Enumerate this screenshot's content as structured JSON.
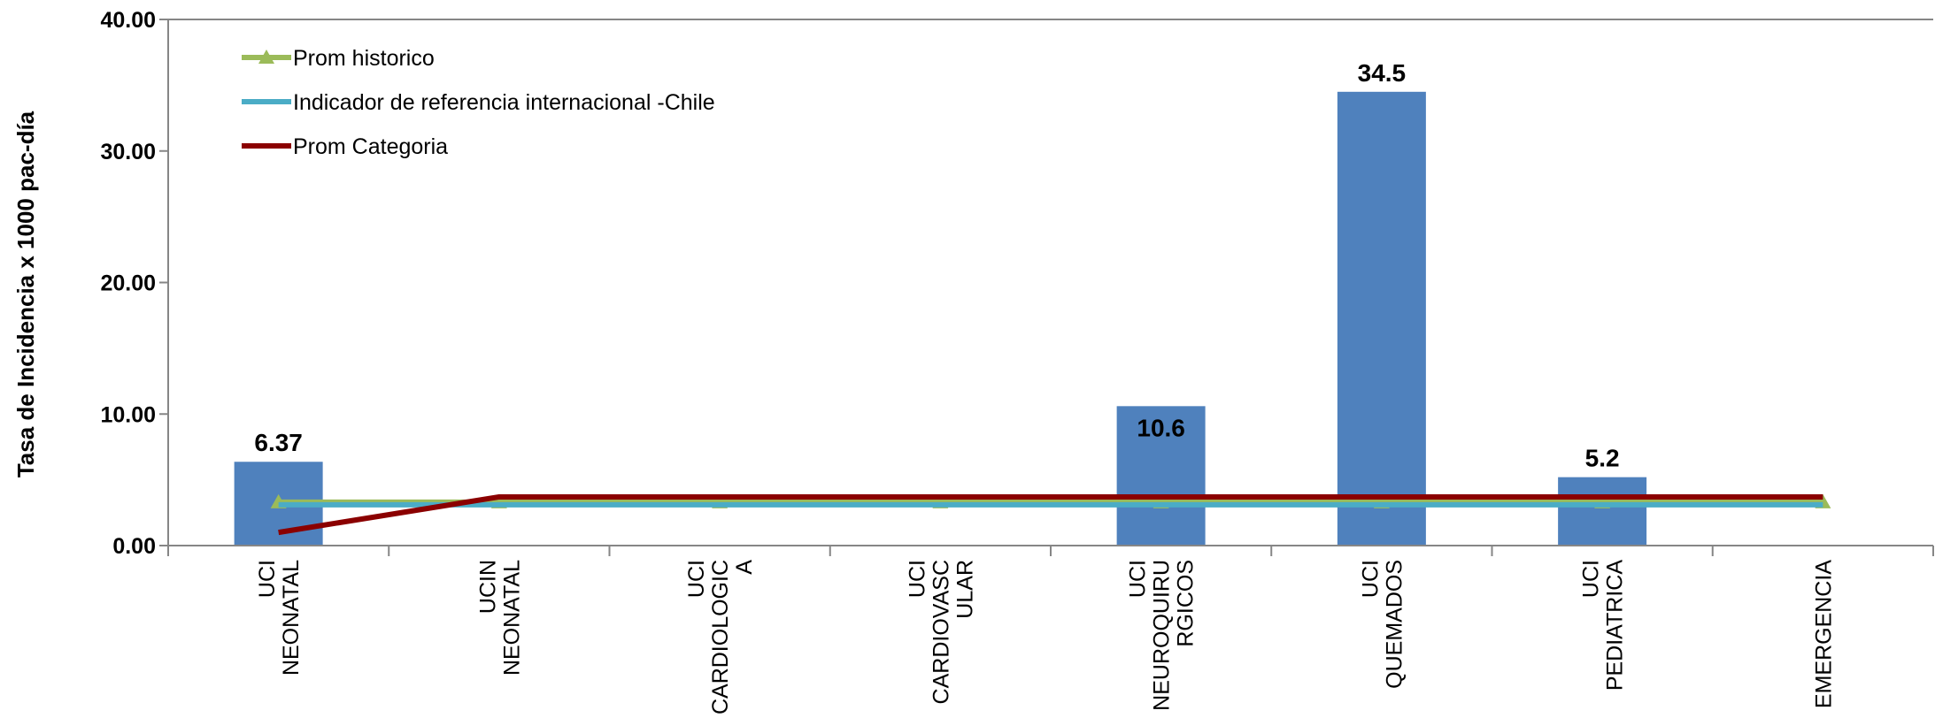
{
  "chart_data": {
    "type": "bar",
    "title": "",
    "ylabel": "Tasa de Incidencia x 1000 pac-día",
    "xlabel": "",
    "ylim": [
      0,
      40
    ],
    "yticks": [
      "0.00",
      "10.00",
      "20.00",
      "30.00",
      "40.00"
    ],
    "grid": false,
    "legend_position": "top-left",
    "categories": [
      [
        "UCI",
        "NEONATAL"
      ],
      [
        "UCIN",
        "NEONATAL"
      ],
      [
        "UCI",
        "CARDIOLOGIC",
        "A"
      ],
      [
        "UCI",
        "CARDIOVASC",
        "ULAR"
      ],
      [
        "UCI",
        "NEUROQUIRU",
        "RGICOS"
      ],
      [
        "UCI",
        "QUEMADOS"
      ],
      [
        "UCI",
        "PEDIATRICA"
      ],
      [
        "EMERGENCIA"
      ]
    ],
    "bars": {
      "color": "#4F81BD",
      "values": [
        6.37,
        null,
        null,
        null,
        10.6,
        34.5,
        5.2,
        null
      ],
      "labels": [
        "6.37",
        "",
        "",
        "",
        "10.6",
        "34.5",
        "5.2",
        ""
      ]
    },
    "lines": [
      {
        "name": "Prom historico",
        "color": "#9BBB59",
        "marker": "triangle",
        "values": [
          3.3,
          3.3,
          3.3,
          3.3,
          3.3,
          3.3,
          3.3,
          3.3
        ]
      },
      {
        "name": "Indicador de referencia internacional -Chile",
        "color": "#4BACC6",
        "marker": "none",
        "values": [
          3.1,
          3.1,
          3.1,
          3.1,
          3.1,
          3.1,
          3.1,
          3.1
        ]
      },
      {
        "name": "Prom Categoria",
        "color": "#8B0000",
        "marker": "none",
        "values": [
          1.0,
          3.7,
          3.7,
          3.7,
          3.7,
          3.7,
          3.7,
          3.7
        ]
      }
    ]
  }
}
